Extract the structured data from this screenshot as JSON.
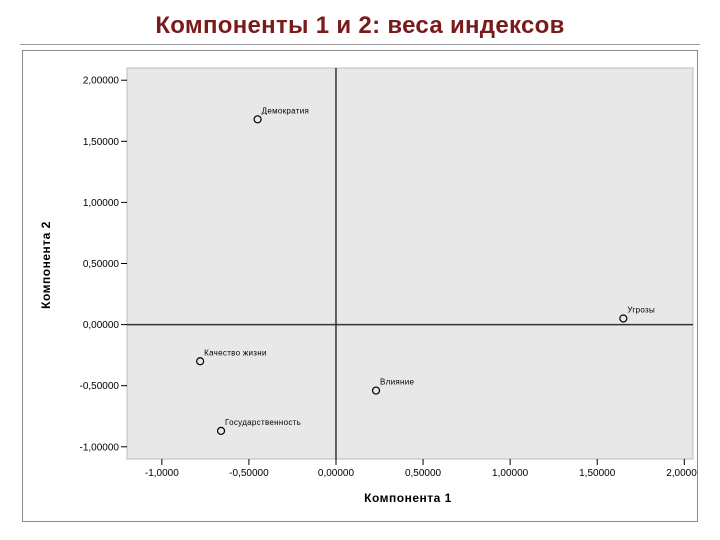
{
  "slide": {
    "title": "Компоненты 1 и 2: веса индексов"
  },
  "chart_data": {
    "type": "scatter",
    "xlabel": "Компонента 1",
    "ylabel": "Компонента 2",
    "xlim": [
      -1.2,
      2.05
    ],
    "ylim": [
      -1.1,
      2.1
    ],
    "x_ticks": [
      -1.0,
      -0.5,
      0.0,
      0.5,
      1.0,
      1.5,
      2.0
    ],
    "x_tick_labels": [
      "-1,0000",
      "-0,50000",
      "0,00000",
      "0,50000",
      "1,00000",
      "1,50000",
      "2,00000"
    ],
    "y_ticks": [
      2.0,
      1.5,
      1.0,
      0.5,
      0.0,
      -0.5,
      -1.0
    ],
    "y_tick_labels": [
      "2,00000",
      "1,50000",
      "1,00000",
      "0,50000",
      "0,00000",
      "-0,50000",
      "-1,00000"
    ],
    "reference_lines": {
      "x": 0,
      "y": 0
    },
    "grid": false,
    "plot_background": "#e8e8e8",
    "points": [
      {
        "label": "Демократия",
        "x": -0.45,
        "y": 1.68
      },
      {
        "label": "Угрозы",
        "x": 1.65,
        "y": 0.05
      },
      {
        "label": "Качество жизни",
        "x": -0.78,
        "y": -0.3
      },
      {
        "label": "Влияние",
        "x": 0.23,
        "y": -0.54
      },
      {
        "label": "Государственность",
        "x": -0.66,
        "y": -0.87
      }
    ]
  }
}
